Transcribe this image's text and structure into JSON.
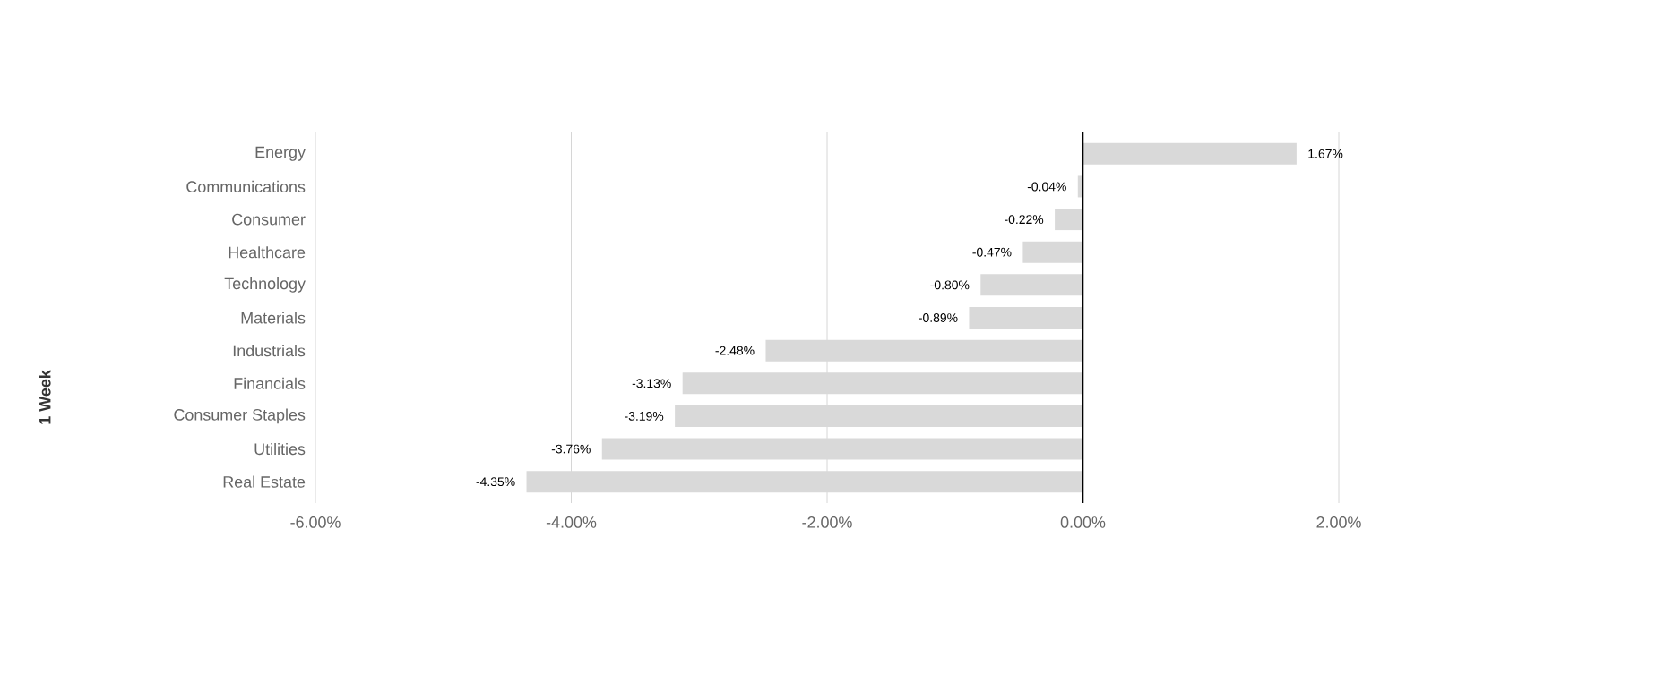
{
  "chart_data": {
    "type": "bar",
    "orientation": "horizontal",
    "annotations": [
      "1 Week"
    ],
    "categories": [
      "Energy",
      "Communications",
      "Consumer",
      "Healthcare",
      "Technology",
      "Materials",
      "Industrials",
      "Financials",
      "Consumer Staples",
      "Utilities",
      "Real Estate"
    ],
    "values": [
      1.67,
      -0.04,
      -0.22,
      -0.47,
      -0.8,
      -0.89,
      -2.48,
      -3.13,
      -3.19,
      -3.76,
      -4.35
    ],
    "value_labels": [
      "1.67%",
      "-0.04%",
      "-0.22%",
      "-0.47%",
      "-0.80%",
      "-0.89%",
      "-2.48%",
      "-3.13%",
      "-3.19%",
      "-3.76%",
      "-4.35%"
    ],
    "color": "#d9d9d9",
    "xlim": [
      -6,
      2
    ],
    "xticks": [
      {
        "value": -6,
        "label": "-6.00%"
      },
      {
        "value": -4,
        "label": "-4.00%"
      },
      {
        "value": -2,
        "label": "-2.00%"
      },
      {
        "value": 0,
        "label": "0.00%"
      },
      {
        "value": 2,
        "label": "2.00%"
      }
    ],
    "grid": "x"
  }
}
